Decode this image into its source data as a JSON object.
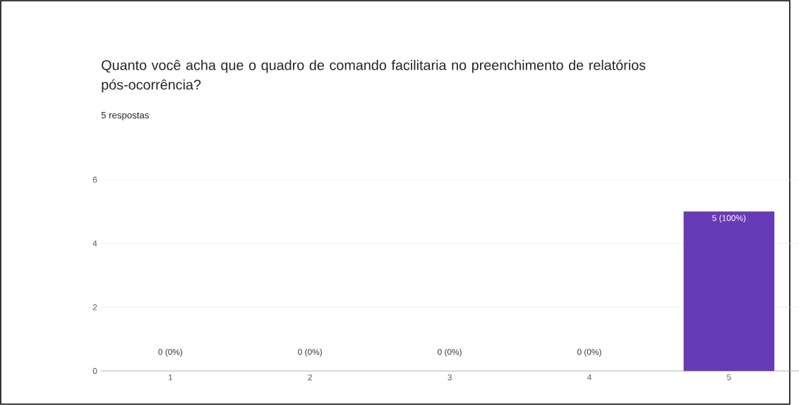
{
  "chart_data": {
    "type": "bar",
    "title": "Quanto você acha que o quadro de comando facilitaria no preenchimento de relatórios pós-ocorrência?",
    "subtitle": "5 respostas",
    "categories": [
      "1",
      "2",
      "3",
      "4",
      "5"
    ],
    "values": [
      0,
      0,
      0,
      0,
      5
    ],
    "value_labels": [
      "0 (0%)",
      "0 (0%)",
      "0 (0%)",
      "0 (0%)",
      "5 (100%)"
    ],
    "color": "#673ab7",
    "ylim": [
      0,
      6
    ],
    "yticks": [
      0,
      2,
      4,
      6
    ],
    "grid": "y"
  }
}
